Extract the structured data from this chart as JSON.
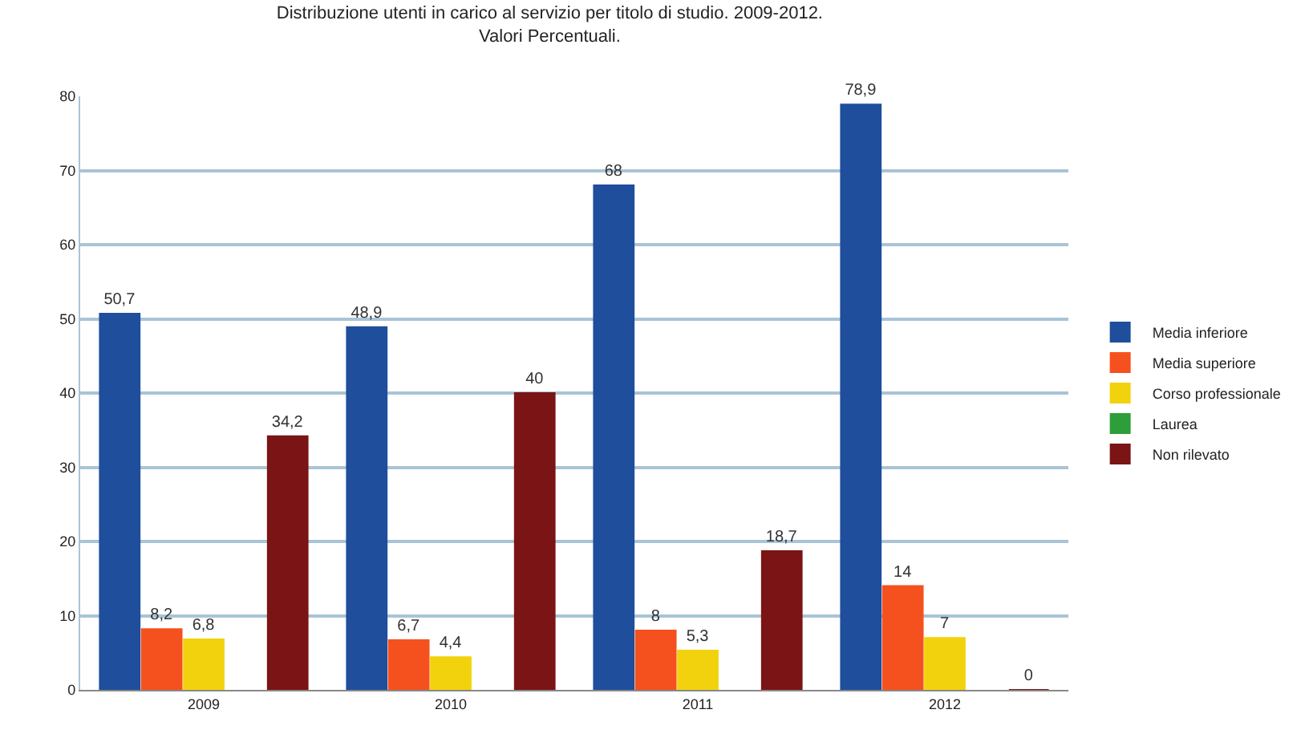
{
  "chart_data": {
    "type": "bar",
    "title": "Distribuzione utenti in carico al servizio per titolo di studio. 2009-2012.",
    "subtitle": "Valori Percentuali.",
    "categories": [
      "2009",
      "2010",
      "2011",
      "2012"
    ],
    "series": [
      {
        "name": "Media inferiore",
        "color": "#1f4e9c",
        "values": [
          50.7,
          48.9,
          68,
          78.9
        ],
        "value_labels": [
          "50,7",
          "48,9",
          "68",
          "78,9"
        ]
      },
      {
        "name": "Media superiore",
        "color": "#f4511e",
        "values": [
          8.2,
          6.7,
          8,
          14
        ],
        "value_labels": [
          "8,2",
          "6,7",
          "8",
          "14"
        ]
      },
      {
        "name": "Corso professionale",
        "color": "#f2d20c",
        "values": [
          6.8,
          4.4,
          5.3,
          7
        ],
        "value_labels": [
          "6,8",
          "4,4",
          "5,3",
          "7"
        ]
      },
      {
        "name": "Laurea",
        "color": "#2e9e3a",
        "values": [
          null,
          null,
          null,
          null
        ],
        "value_labels": [
          null,
          null,
          null,
          null
        ]
      },
      {
        "name": "Non rilevato",
        "color": "#7b1414",
        "values": [
          34.2,
          40,
          18.7,
          0
        ],
        "value_labels": [
          "34,2",
          "40",
          "18,7",
          "0"
        ]
      }
    ],
    "ylim": [
      0,
      80
    ],
    "yticks": [
      0,
      10,
      20,
      30,
      40,
      50,
      60,
      70,
      80
    ],
    "grid": "y",
    "legend": "right"
  }
}
